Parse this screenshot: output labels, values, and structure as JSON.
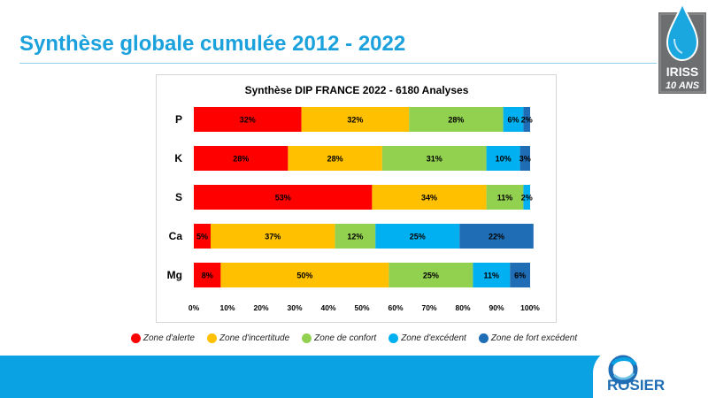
{
  "slide": {
    "title": "Synthèse globale cumulée 2012 - 2022"
  },
  "logos": {
    "iriss_name": "IRISS",
    "iriss_tagline": "10 ANS",
    "rosier_name": "ROSIER"
  },
  "colors": {
    "title_blue": "#1ba1dc",
    "footer_blue": "#0aa2e3"
  },
  "chart_data": {
    "type": "bar",
    "orientation": "horizontal",
    "stacked": true,
    "title": "Synthèse DIP FRANCE 2022  - 6180 Analyses",
    "categories": [
      "P",
      "K",
      "S",
      "Ca",
      "Mg"
    ],
    "series": [
      {
        "name": "Zone d'alerte",
        "color": "#ff0000",
        "values": [
          32,
          28,
          53,
          5,
          8
        ]
      },
      {
        "name": "Zone d'incertitude",
        "color": "#ffc000",
        "values": [
          32,
          28,
          34,
          37,
          50
        ]
      },
      {
        "name": "Zone de confort",
        "color": "#92d050",
        "values": [
          28,
          31,
          11,
          12,
          25
        ]
      },
      {
        "name": "Zone d'excédent",
        "color": "#00b0f0",
        "values": [
          6,
          10,
          2,
          25,
          11
        ]
      },
      {
        "name": "Zone de fort excédent",
        "color": "#1f6eb5",
        "values": [
          2,
          3,
          0,
          22,
          6
        ]
      }
    ],
    "value_suffix": "%",
    "xlim": [
      0,
      100
    ],
    "xticks": [
      "0%",
      "10%",
      "20%",
      "30%",
      "40%",
      "50%",
      "60%",
      "70%",
      "80%",
      "90%",
      "100%"
    ],
    "grid": false,
    "legend_position": "bottom"
  }
}
